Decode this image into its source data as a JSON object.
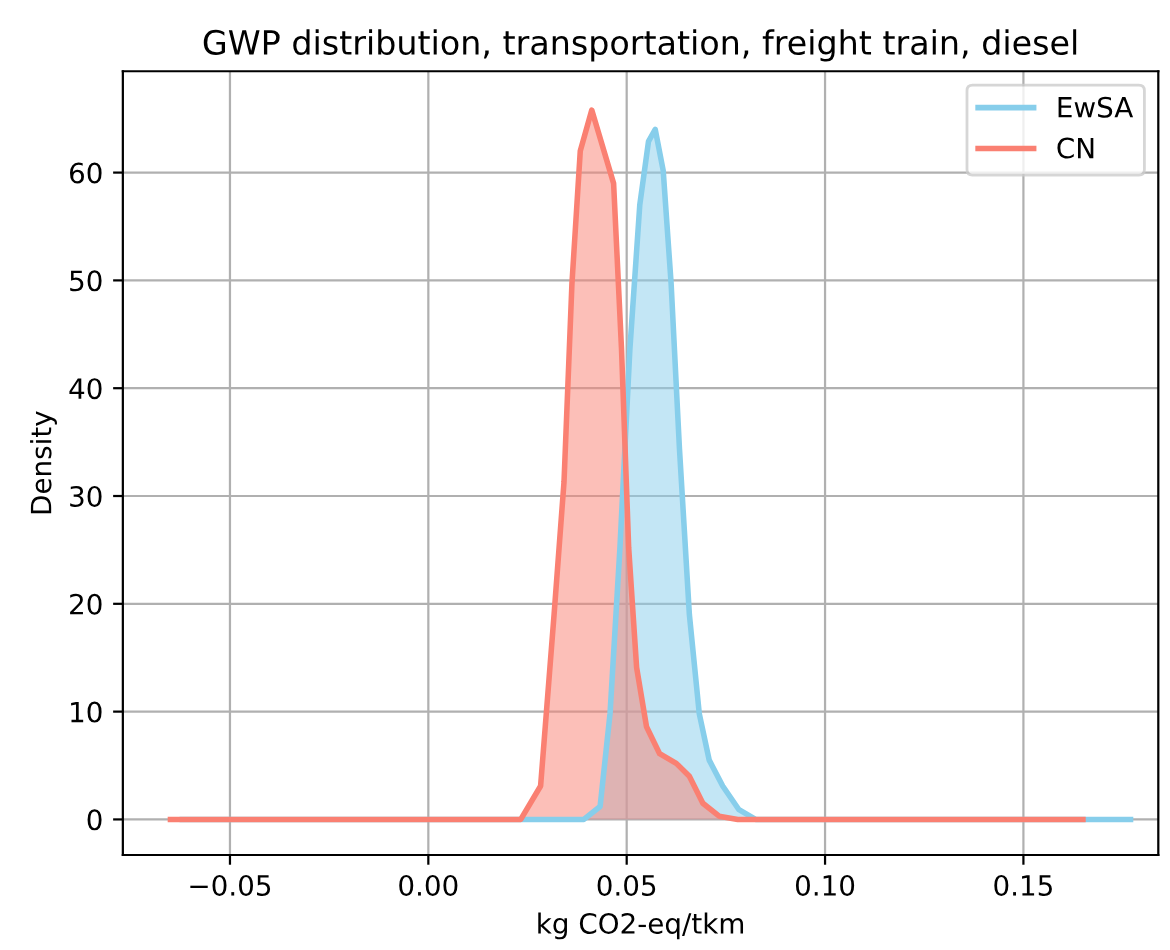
{
  "chart_data": {
    "type": "area",
    "title": "GWP distribution, transportation, freight train, diesel",
    "xlabel": "kg CO2-eq/tkm",
    "ylabel": "Density",
    "xlim": [
      -0.077,
      0.184
    ],
    "ylim": [
      -3.3,
      69.4
    ],
    "xticks": [
      {
        "value": -0.05,
        "label": "−0.05"
      },
      {
        "value": 0,
        "label": "0.00"
      },
      {
        "value": 0.05,
        "label": "0.05"
      },
      {
        "value": 0.1,
        "label": "0.10"
      },
      {
        "value": 0.15,
        "label": "0.15"
      }
    ],
    "yticks": [
      0,
      10,
      20,
      30,
      40,
      50,
      60
    ],
    "grid": true,
    "legend": "top right",
    "series": [
      {
        "name": "EwSA",
        "color": "#87ceeb",
        "x": [
          -0.062,
          0.0,
          0.03,
          0.0392,
          0.0433,
          0.0458,
          0.0483,
          0.0508,
          0.0533,
          0.0555,
          0.0572,
          0.0592,
          0.0612,
          0.0633,
          0.0658,
          0.0683,
          0.0708,
          0.0742,
          0.0783,
          0.0825,
          0.12,
          0.177
        ],
        "values": [
          0,
          0,
          0,
          0,
          1.2,
          9.8,
          25.2,
          43.6,
          57,
          62.9,
          64.0,
          60.2,
          49.7,
          34.4,
          19,
          9.8,
          5.5,
          3.1,
          0.9,
          0,
          0,
          0
        ]
      },
      {
        "name": "CN",
        "color": "#fa8072",
        "x": [
          -0.065,
          0.0,
          0.0233,
          0.0283,
          0.0317,
          0.0342,
          0.0362,
          0.0383,
          0.0412,
          0.0467,
          0.0487,
          0.0505,
          0.0525,
          0.055,
          0.0583,
          0.0625,
          0.0658,
          0.0692,
          0.0733,
          0.078,
          0.12,
          0.165
        ],
        "values": [
          0,
          0,
          0,
          3.1,
          19,
          31.3,
          49.7,
          62,
          65.8,
          59,
          43.6,
          25.2,
          14.1,
          8.6,
          6.1,
          5.2,
          4,
          1.5,
          0.3,
          0,
          0,
          0
        ]
      }
    ]
  }
}
